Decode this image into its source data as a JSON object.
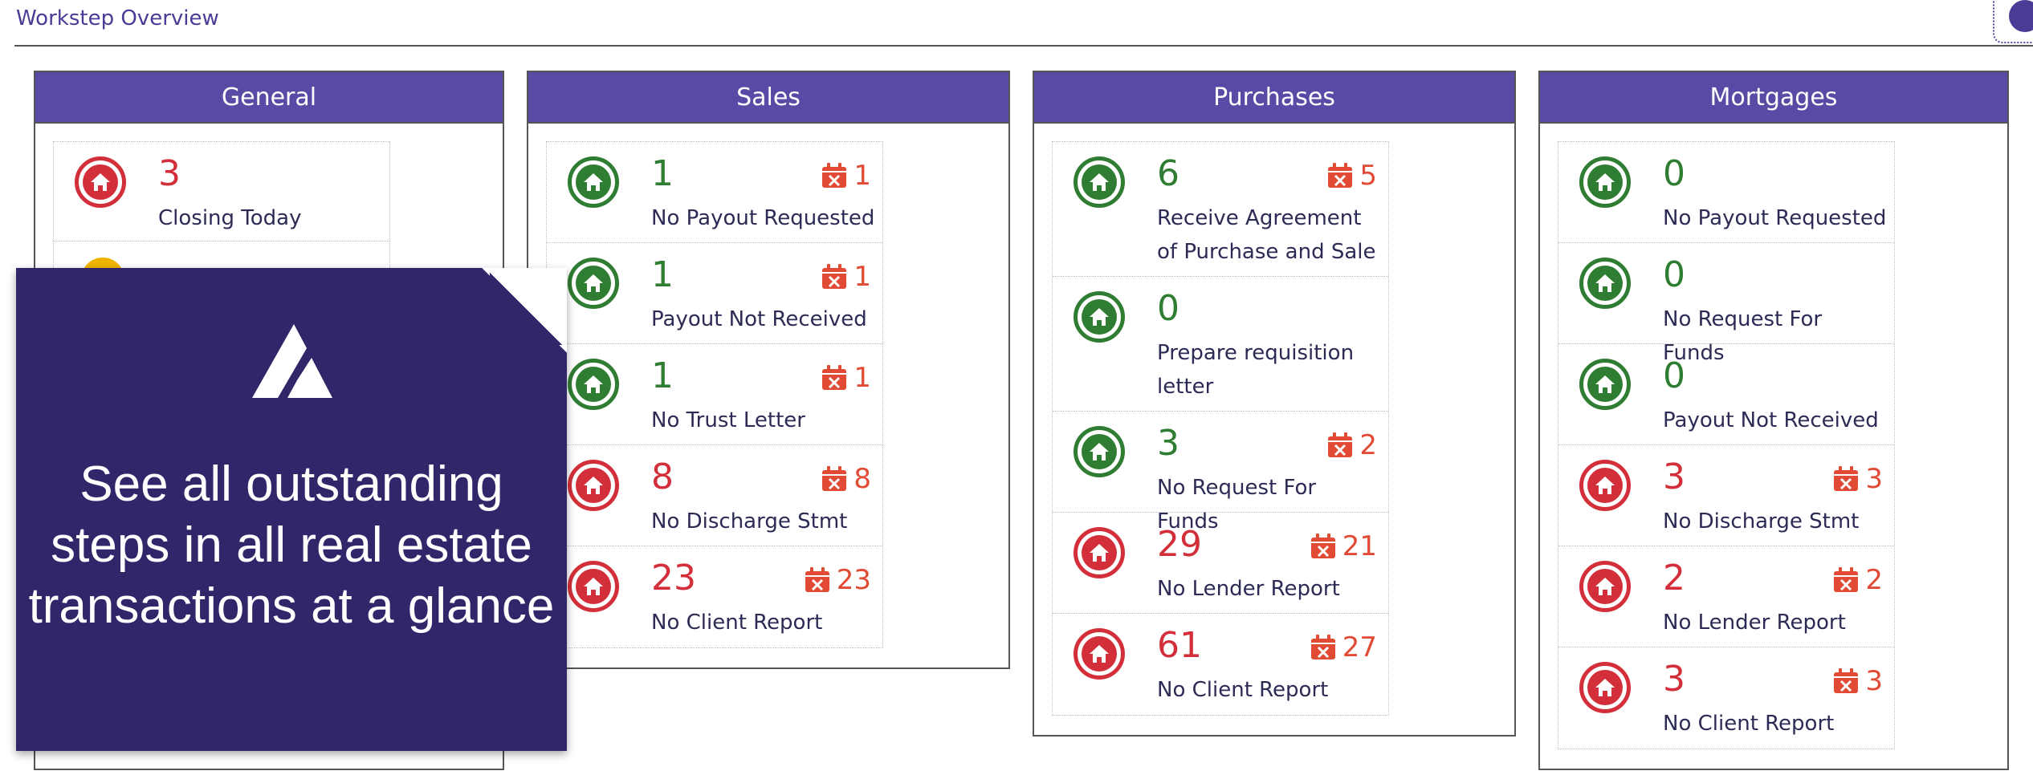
{
  "page": {
    "title": "Workstep Overview"
  },
  "colors": {
    "header_purple": "#5b4aa5",
    "green": "#2f7d32",
    "red": "#d32f3a",
    "calendar_orange": "#e14b35",
    "overlay": "#2f2769"
  },
  "panels": [
    {
      "title": "General",
      "items": [
        {
          "status": "red",
          "count": "3",
          "label": "Closing Today",
          "overdue": ""
        }
      ]
    },
    {
      "title": "Sales",
      "items": [
        {
          "status": "green",
          "count": "1",
          "label": "No Payout Requested",
          "overdue": "1"
        },
        {
          "status": "green",
          "count": "1",
          "label": "Payout Not Received",
          "overdue": "1"
        },
        {
          "status": "green",
          "count": "1",
          "label": "No Trust Letter",
          "overdue": "1"
        },
        {
          "status": "red",
          "count": "8",
          "label": "No Discharge Stmt",
          "overdue": "8"
        },
        {
          "status": "red",
          "count": "23",
          "label": "No Client Report",
          "overdue": "23"
        }
      ]
    },
    {
      "title": "Purchases",
      "items": [
        {
          "status": "green",
          "count": "6",
          "label": "Receive Agreement of Purchase and Sale",
          "overdue": "5"
        },
        {
          "status": "green",
          "count": "0",
          "label": "Prepare requisition letter",
          "overdue": ""
        },
        {
          "status": "green",
          "count": "3",
          "label": "No Request For Funds",
          "overdue": "2"
        },
        {
          "status": "red",
          "count": "29",
          "label": "No Lender Report",
          "overdue": "21"
        },
        {
          "status": "red",
          "count": "61",
          "label": "No Client Report",
          "overdue": "27"
        }
      ]
    },
    {
      "title": "Mortgages",
      "items": [
        {
          "status": "green",
          "count": "0",
          "label": "No Payout Requested",
          "overdue": ""
        },
        {
          "status": "green",
          "count": "0",
          "label": "No Request For Funds",
          "overdue": ""
        },
        {
          "status": "green",
          "count": "0",
          "label": "Payout Not Received",
          "overdue": ""
        },
        {
          "status": "red",
          "count": "3",
          "label": "No Discharge Stmt",
          "overdue": "3"
        },
        {
          "status": "red",
          "count": "2",
          "label": "No Lender Report",
          "overdue": "2"
        },
        {
          "status": "red",
          "count": "3",
          "label": "No Client Report",
          "overdue": "3"
        }
      ]
    }
  ],
  "overlay": {
    "tagline": "See all outstanding steps in all real estate transactions at a glance"
  },
  "icons": {
    "item_icon": "home-icon",
    "overdue_icon": "calendar-x-icon",
    "logo": "brand-logo-icon"
  }
}
